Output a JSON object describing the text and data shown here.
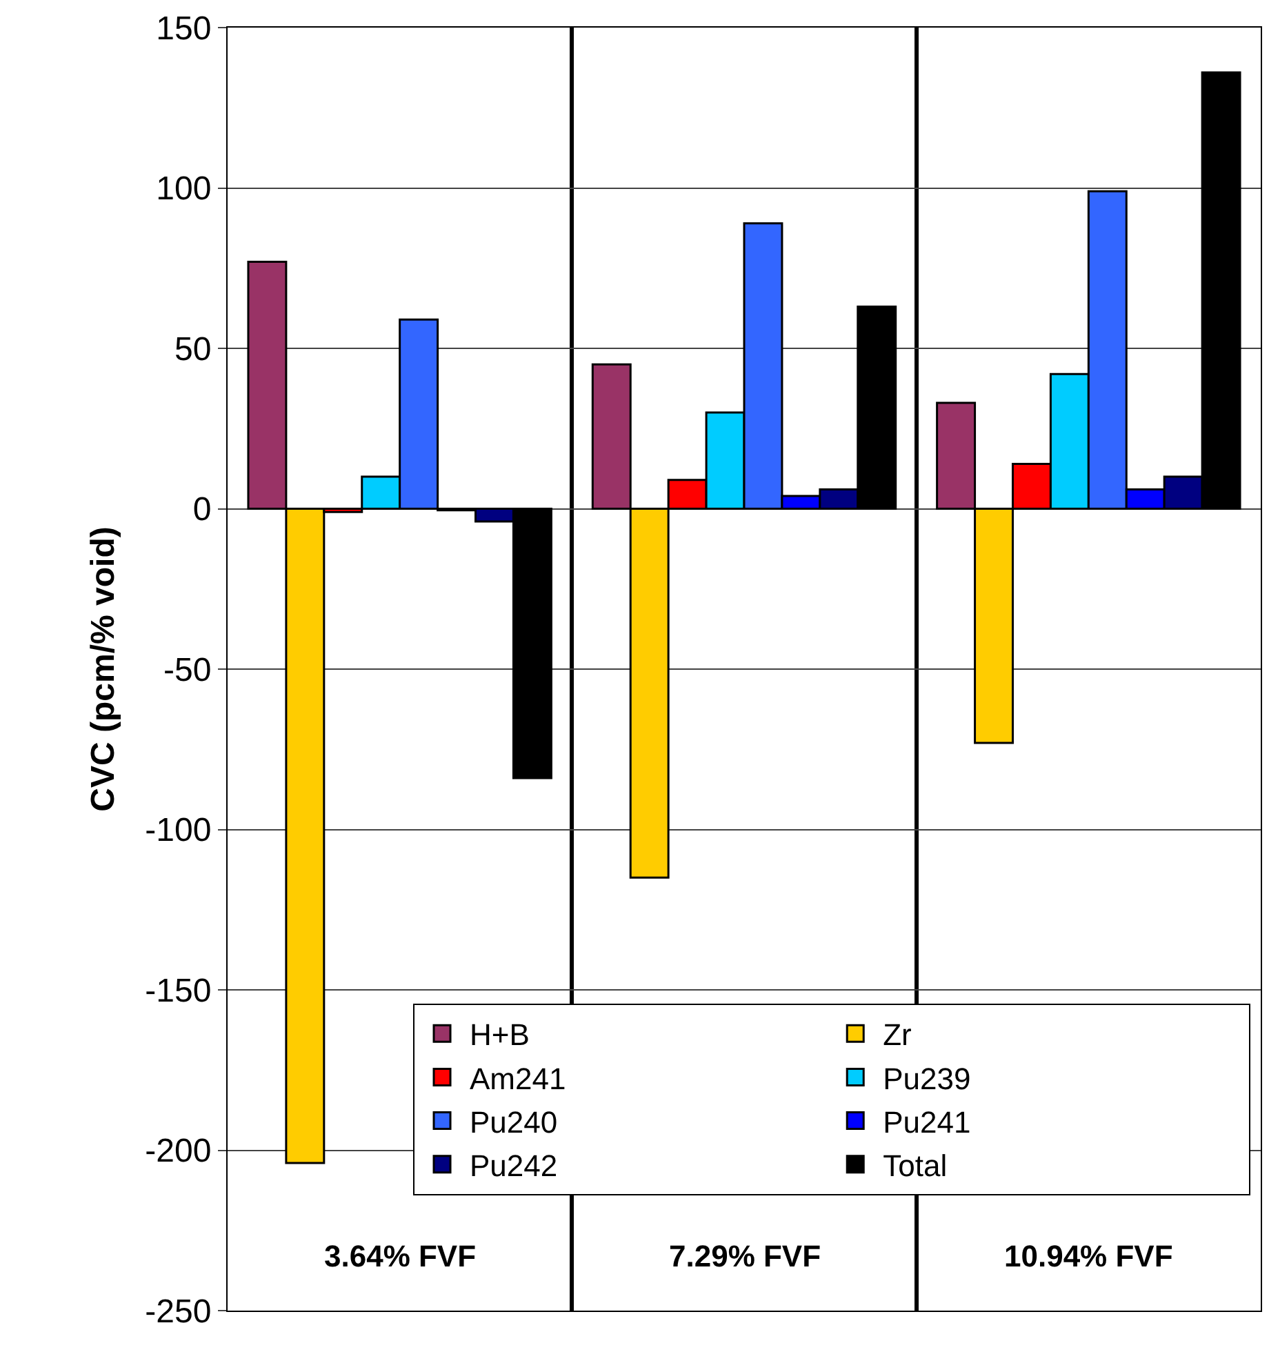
{
  "chart_data": {
    "type": "bar",
    "ylabel": "CVC (pcm/% void)",
    "categories": [
      "3.64% FVF",
      "7.29% FVF",
      "10.94% FVF"
    ],
    "series": [
      {
        "name": "H+B",
        "color": "#993366",
        "values": [
          77,
          45,
          33
        ]
      },
      {
        "name": "Zr",
        "color": "#ffcc00",
        "values": [
          -204,
          -115,
          -73
        ]
      },
      {
        "name": "Am241",
        "color": "#ff0000",
        "values": [
          -1,
          9,
          14
        ]
      },
      {
        "name": "Pu239",
        "color": "#00ccff",
        "values": [
          10,
          30,
          42
        ]
      },
      {
        "name": "Pu240",
        "color": "#3366ff",
        "values": [
          59,
          89,
          99
        ]
      },
      {
        "name": "Pu241",
        "color": "#0000ff",
        "values": [
          -0.5,
          4,
          6
        ]
      },
      {
        "name": "Pu242",
        "color": "#000080",
        "values": [
          -4,
          6,
          10
        ]
      },
      {
        "name": "Total",
        "color": "#000000",
        "values": [
          -84,
          63,
          136
        ]
      }
    ],
    "ylim": [
      -250,
      150
    ],
    "yticks": [
      -250,
      -200,
      -150,
      -100,
      -50,
      0,
      50,
      100,
      150
    ],
    "grid": true,
    "legend": "bottom right"
  }
}
